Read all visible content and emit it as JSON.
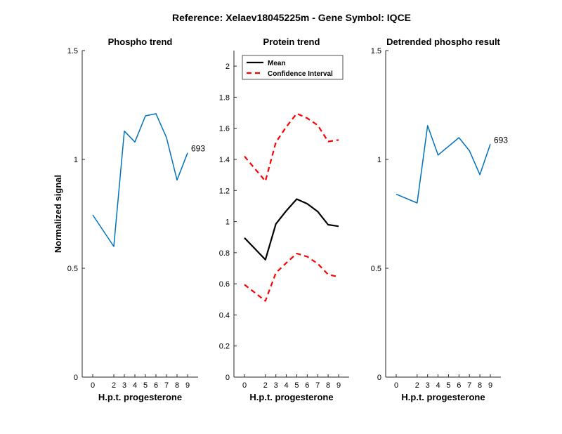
{
  "figure": {
    "suptitle": "Reference:  Xelaev18045225m - Gene Symbol:  IQCE"
  },
  "chart_data": [
    {
      "type": "line",
      "title": "Phospho trend",
      "xlabel": "H.p.t. progesterone",
      "ylabel": "Normalized signal",
      "x": [
        0,
        2,
        3,
        4,
        5,
        6,
        7,
        8,
        9
      ],
      "xlim": [
        0,
        9
      ],
      "ylim": [
        0,
        1.5
      ],
      "yticks": [
        0,
        0.5,
        1,
        1.5
      ],
      "ytick_labels": [
        "0",
        "0.5",
        "1",
        "1.5"
      ],
      "grid": false,
      "series": [
        {
          "values": [
            0.745,
            0.6,
            1.13,
            1.08,
            1.2,
            1.21,
            1.1,
            0.905,
            1.03
          ],
          "color": "#0072BD",
          "style": "solid"
        }
      ],
      "annotations": [
        {
          "text": "693",
          "x": 9,
          "y": 1.03
        }
      ]
    },
    {
      "type": "line",
      "title": "Protein trend",
      "xlabel": "H.p.t. progesterone",
      "ylabel": "",
      "x": [
        0,
        2,
        3,
        4,
        5,
        6,
        7,
        8,
        9
      ],
      "xlim": [
        0,
        9
      ],
      "ylim": [
        0,
        2.1
      ],
      "yticks": [
        0,
        0.2,
        0.4,
        0.6,
        0.8,
        1,
        1.2,
        1.4,
        1.6,
        1.8,
        2
      ],
      "ytick_labels": [
        "0",
        "0.2",
        "0.4",
        "0.6",
        "0.8",
        "1",
        "1.2",
        "1.4",
        "1.6",
        "1.8",
        "2"
      ],
      "grid": false,
      "legend": {
        "position": "top-left"
      },
      "series": [
        {
          "name": "Mean",
          "values": [
            0.895,
            0.755,
            0.985,
            1.07,
            1.145,
            1.115,
            1.065,
            0.98,
            0.97
          ],
          "color": "#000000",
          "style": "solid",
          "in_legend": true
        },
        {
          "name": "Confidence Interval",
          "values": [
            1.42,
            1.26,
            1.51,
            1.61,
            1.695,
            1.665,
            1.62,
            1.515,
            1.525
          ],
          "color": "#FF0000",
          "style": "dashed",
          "in_legend": true
        },
        {
          "name": "Confidence Interval",
          "values": [
            0.595,
            0.49,
            0.67,
            0.735,
            0.795,
            0.775,
            0.73,
            0.66,
            0.645
          ],
          "color": "#FF0000",
          "style": "dashed",
          "in_legend": false
        }
      ]
    },
    {
      "type": "line",
      "title": "Detrended phospho result",
      "xlabel": "H.p.t. progesterone",
      "ylabel": "",
      "x": [
        0,
        2,
        3,
        4,
        5,
        6,
        7,
        8,
        9
      ],
      "xlim": [
        0,
        9
      ],
      "ylim": [
        0,
        1.5
      ],
      "yticks": [
        0,
        0.5,
        1,
        1.5
      ],
      "ytick_labels": [
        "0",
        "0.5",
        "1",
        "1.5"
      ],
      "grid": false,
      "series": [
        {
          "values": [
            0.84,
            0.8,
            1.155,
            1.02,
            1.06,
            1.1,
            1.04,
            0.93,
            1.07
          ],
          "color": "#0072BD",
          "style": "solid"
        }
      ],
      "annotations": [
        {
          "text": "693",
          "x": 9,
          "y": 1.07
        }
      ]
    }
  ]
}
